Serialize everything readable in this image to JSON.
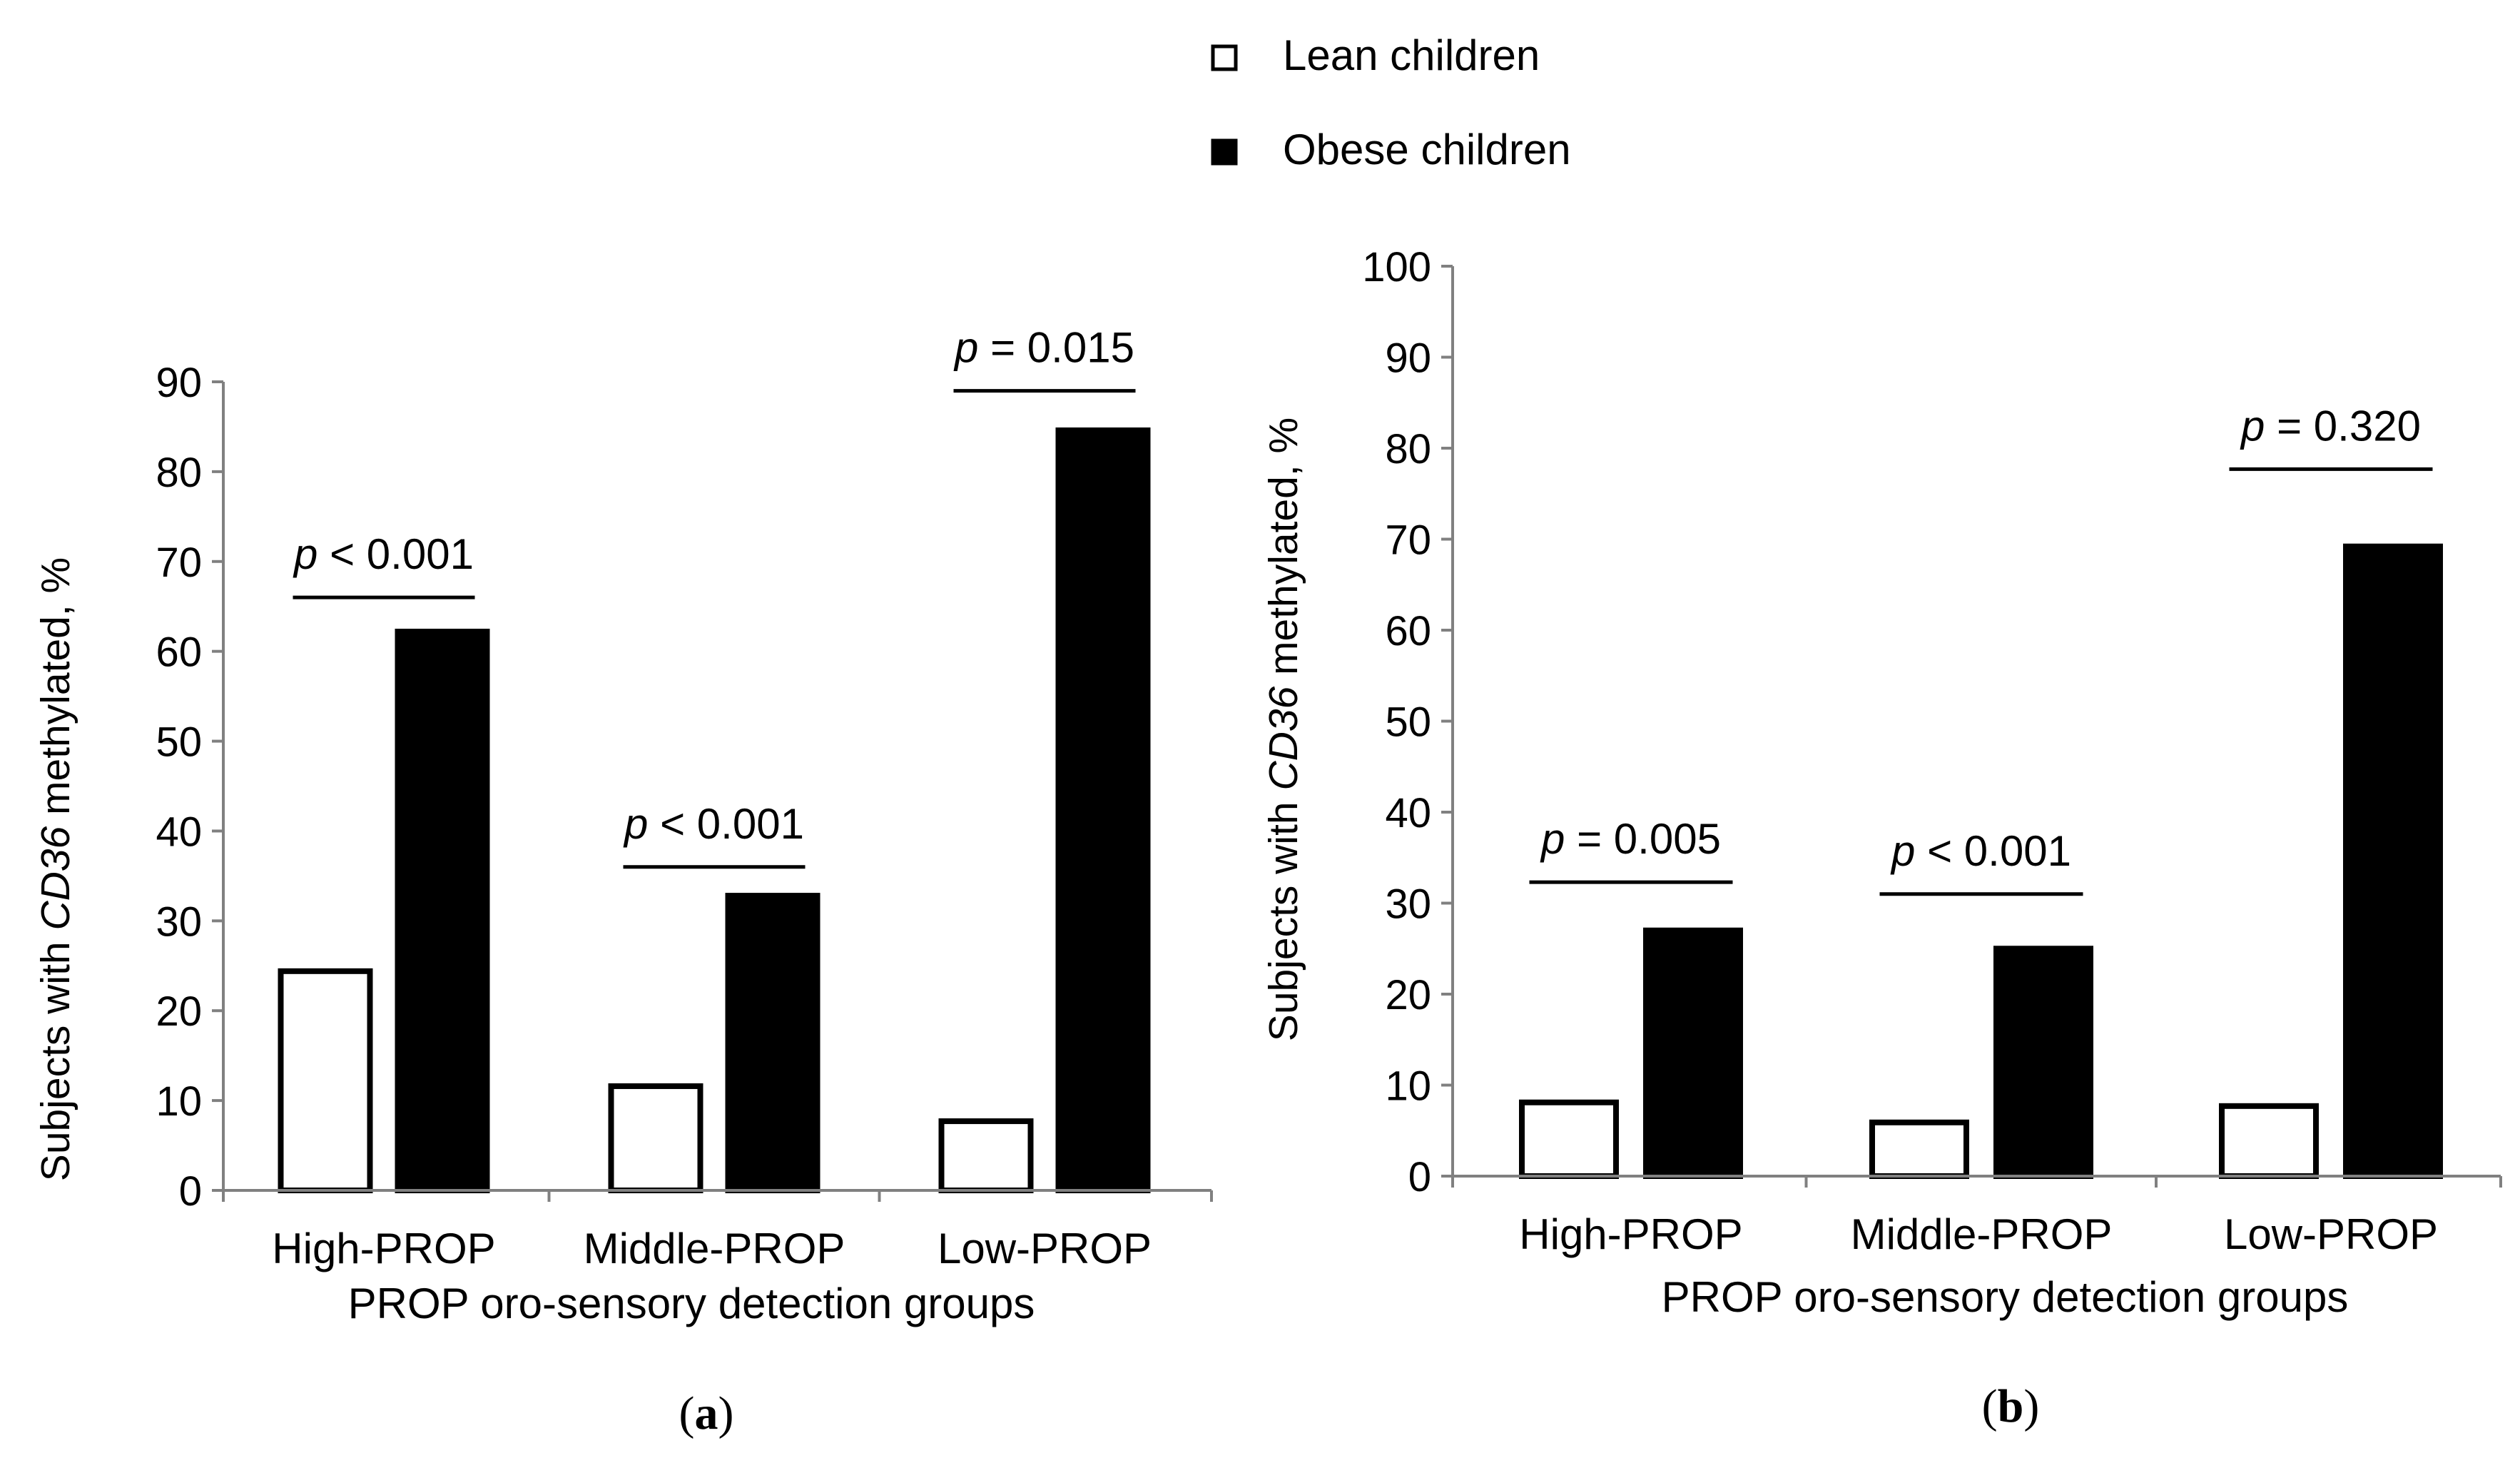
{
  "legend": {
    "lean_label": "Lean children",
    "obese_label": "Obese children"
  },
  "colors": {
    "lean": "#ffffff",
    "obese": "#000000",
    "axis": "#808080",
    "text": "#000000"
  },
  "chart_data": [
    {
      "type": "bar",
      "panel": "(a)",
      "panel_letter": "a",
      "xlabel": "PROP oro-sensory detection groups",
      "ylabel_prefix": "Subjects with ",
      "ylabel_italic": "CD36",
      "ylabel_suffix": " methylated, %",
      "ylim": [
        0,
        90
      ],
      "yticks": [
        0,
        10,
        20,
        30,
        40,
        50,
        60,
        70,
        80,
        90
      ],
      "categories": [
        "High-PROP",
        "Middle-PROP",
        "Low-PROP"
      ],
      "series": [
        {
          "name": "Lean children",
          "values": [
            24.4,
            11.6,
            7.7
          ]
        },
        {
          "name": "Obese children",
          "values": [
            62.2,
            32.8,
            84.6
          ]
        }
      ],
      "annotations": [
        {
          "group": 0,
          "p": "p",
          "text": " < 0.001",
          "level": 66
        },
        {
          "group": 1,
          "p": "p",
          "text": " < 0.001",
          "level": 36
        },
        {
          "group": 2,
          "p": "p",
          "text": " = 0.015",
          "level": 89
        }
      ]
    },
    {
      "type": "bar",
      "panel": "(b)",
      "panel_letter": "b",
      "xlabel": "PROP oro-sensory detection groups",
      "ylabel_prefix": "Subjects with ",
      "ylabel_italic": "CD36",
      "ylabel_suffix": " methylated, %",
      "ylim": [
        0,
        100
      ],
      "yticks": [
        0,
        10,
        20,
        30,
        40,
        50,
        60,
        70,
        80,
        90,
        100
      ],
      "categories": [
        "High-PROP",
        "Middle-PROP",
        "Low-PROP"
      ],
      "series": [
        {
          "name": "Lean children",
          "values": [
            8.1,
            5.9,
            7.7
          ]
        },
        {
          "name": "Obese children",
          "values": [
            27.0,
            25.0,
            69.2
          ]
        }
      ],
      "annotations": [
        {
          "group": 0,
          "p": "p",
          "text": " = 0.005",
          "level": 32.3
        },
        {
          "group": 1,
          "p": "p",
          "text": " < 0.001",
          "level": 31
        },
        {
          "group": 2,
          "p": "p",
          "text": " = 0.320",
          "level": 77.7
        }
      ]
    }
  ]
}
